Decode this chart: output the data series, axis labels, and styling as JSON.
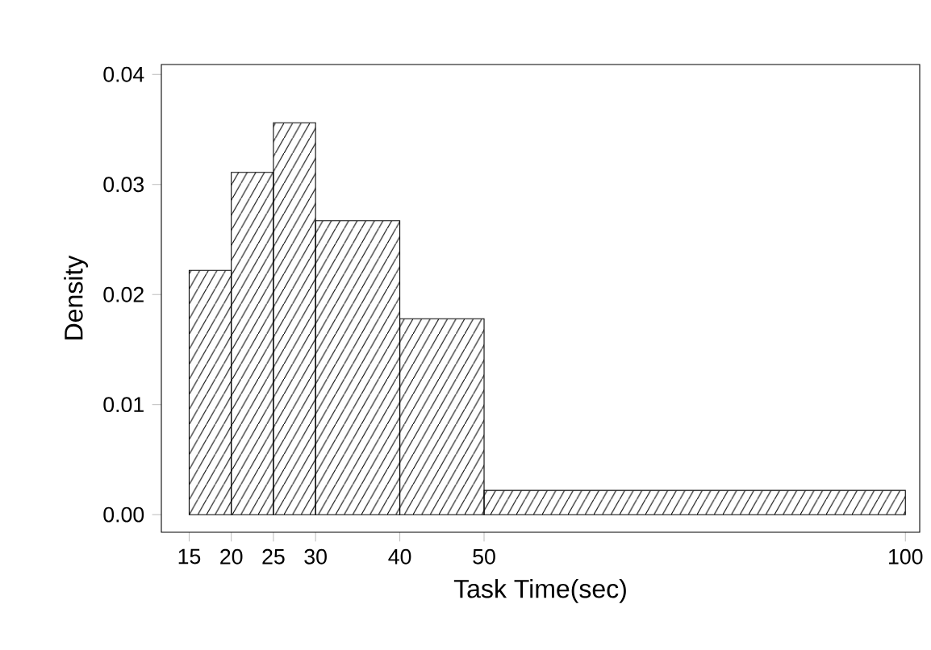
{
  "chart_data": {
    "type": "histogram",
    "xlabel": "Task Time(sec)",
    "ylabel": "Density",
    "bins": [
      15,
      20,
      25,
      30,
      40,
      50,
      100
    ],
    "values": [
      0.0222,
      0.0311,
      0.0356,
      0.0267,
      0.0178,
      0.0022
    ],
    "color": "#000000",
    "xlim": [
      11.7,
      101.7
    ],
    "ylim": [
      -0.0016,
      0.0409
    ],
    "xticks": [
      15,
      20,
      25,
      30,
      40,
      50,
      100
    ],
    "yticks": [
      {
        "value": 0,
        "label": "0.00"
      },
      {
        "value": 0.01,
        "label": "0.01"
      },
      {
        "value": 0.02,
        "label": "0.02"
      },
      {
        "value": 0.03,
        "label": "0.03"
      },
      {
        "value": 0.04,
        "label": "0.04"
      }
    ],
    "grid": false
  }
}
